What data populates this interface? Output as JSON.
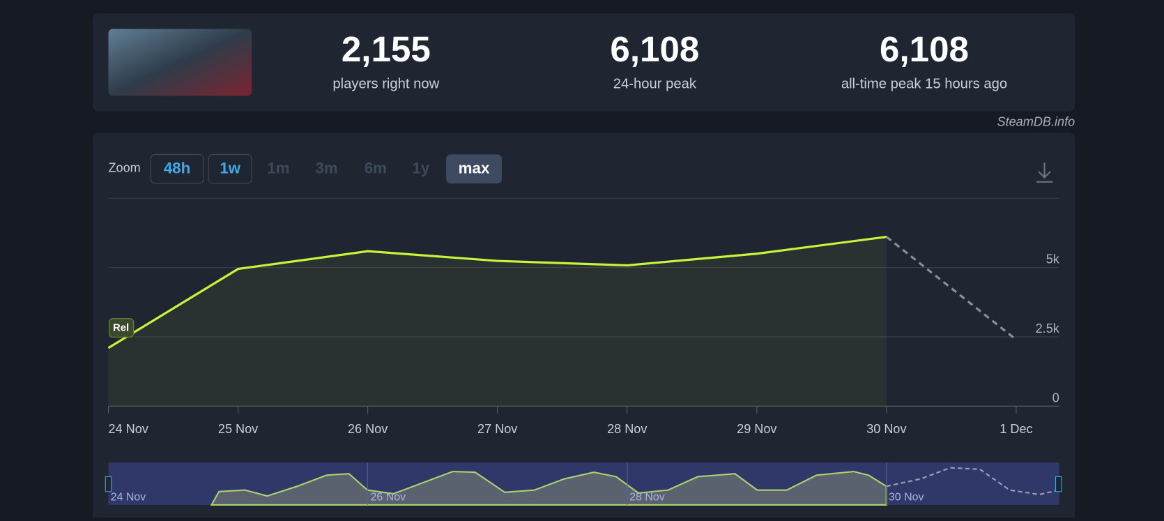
{
  "header": {
    "stats": [
      {
        "value": "2,155",
        "label": "players right now"
      },
      {
        "value": "6,108",
        "label": "24-hour peak"
      },
      {
        "value": "6,108",
        "label": "all-time peak 15 hours ago"
      }
    ],
    "credit": "SteamDB.info"
  },
  "zoom": {
    "label": "Zoom",
    "options": [
      "48h",
      "1w",
      "1m",
      "3m",
      "6m",
      "1y",
      "max"
    ]
  },
  "chart_data": {
    "type": "line",
    "categories": [
      "24 Nov",
      "25 Nov",
      "26 Nov",
      "27 Nov",
      "28 Nov",
      "29 Nov",
      "30 Nov",
      "1 Dec"
    ],
    "series": [
      {
        "color": "#c6f53a",
        "values": [
          2100,
          4950,
          5590,
          5240,
          5080,
          5500,
          6108,
          null
        ]
      },
      {
        "color": "#8a8f96",
        "dashed": true,
        "values": [
          null,
          null,
          null,
          null,
          null,
          null,
          6108,
          2400
        ]
      }
    ],
    "ylim": [
      0,
      7500
    ],
    "yticks": [
      0,
      {
        "value": 2500,
        "label": "2.5k"
      },
      {
        "value": 5000,
        "label": "5k"
      }
    ],
    "grid": true,
    "annotations": [
      "Rel"
    ]
  },
  "navigator": {
    "labels": [
      "24 Nov",
      "26 Nov",
      "28 Nov",
      "30 Nov"
    ]
  }
}
